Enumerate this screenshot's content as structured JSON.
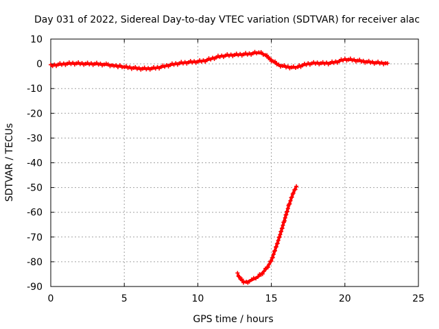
{
  "chart_data": {
    "type": "scatter",
    "title": "Day 031 of 2022, Sidereal Day-to-day VTEC variation (SDTVAR) for receiver alac",
    "xlabel": "GPS time / hours",
    "ylabel": "SDTVAR / TECUs",
    "xlim": [
      0,
      25
    ],
    "ylim": [
      -90,
      10
    ],
    "xticks": [
      0,
      5,
      10,
      15,
      20,
      25
    ],
    "yticks": [
      10,
      0,
      -10,
      -20,
      -30,
      -40,
      -50,
      -60,
      -70,
      -80,
      -90
    ],
    "grid": true,
    "marker_color": "#ff0000",
    "marker": "plus",
    "series": [
      {
        "name": "main",
        "x": [
          0.0,
          0.5,
          1.0,
          1.5,
          2.0,
          2.5,
          3.0,
          3.5,
          3.9,
          4.3,
          4.7,
          5.0,
          5.5,
          6.0,
          6.5,
          7.0,
          7.5,
          8.0,
          8.5,
          9.0,
          9.5,
          10.0,
          10.5,
          11.0,
          11.5,
          12.0,
          12.5,
          13.0,
          13.5,
          14.0,
          14.3,
          14.6,
          15.0,
          15.5,
          16.0,
          16.5,
          16.8,
          17.0,
          17.5,
          18.0,
          18.5,
          19.0,
          19.5,
          20.0,
          20.5,
          21.0,
          21.5,
          22.0,
          22.5,
          22.9
        ],
        "y": [
          -0.8,
          -0.3,
          0.0,
          0.2,
          0.1,
          0.0,
          0.0,
          -0.2,
          -0.4,
          -0.7,
          -1.0,
          -1.3,
          -1.6,
          -1.9,
          -2.0,
          -1.8,
          -1.3,
          -0.6,
          0.0,
          0.4,
          0.7,
          0.9,
          1.3,
          2.2,
          3.0,
          3.4,
          3.6,
          3.8,
          4.0,
          4.5,
          4.3,
          3.5,
          1.5,
          -0.5,
          -1.2,
          -1.5,
          -1.3,
          -0.8,
          0.0,
          0.3,
          0.2,
          0.3,
          0.9,
          1.8,
          1.6,
          1.2,
          0.8,
          0.5,
          0.3,
          0.2
        ]
      },
      {
        "name": "negative-excursion",
        "x": [
          12.7,
          12.9,
          13.1,
          13.3,
          13.5,
          13.8,
          14.1,
          14.4,
          14.7,
          15.0,
          15.3,
          15.6,
          15.9,
          16.2,
          16.5,
          16.7
        ],
        "y": [
          -85.0,
          -87.0,
          -88.0,
          -88.3,
          -87.8,
          -87.0,
          -86.0,
          -84.5,
          -82.5,
          -79.5,
          -74.5,
          -69.0,
          -63.0,
          -57.0,
          -52.0,
          -49.5
        ]
      }
    ]
  }
}
